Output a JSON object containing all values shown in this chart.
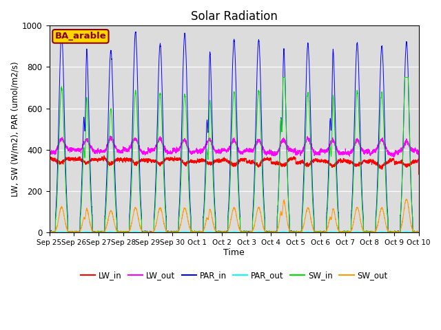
{
  "title": "Solar Radiation",
  "xlabel": "Time",
  "ylabel": "LW, SW (W/m2), PAR (umol/m2/s)",
  "ylim": [
    0,
    1000
  ],
  "site_label": "BA_arable",
  "bg_color": "#dcdcdc",
  "line_colors": {
    "LW_in": "#ff0000",
    "LW_out": "#ff00ff",
    "PAR_in": "#0000ff",
    "PAR_out": "#00ffff",
    "SW_in": "#00dd00",
    "SW_out": "#ff9900"
  },
  "tick_labels": [
    "Sep 25",
    "Sep 26",
    "Sep 27",
    "Sep 28",
    "Sep 29",
    "Sep 30",
    "Oct 1",
    "Oct 2",
    "Oct 3",
    "Oct 4",
    "Oct 5",
    "Oct 6",
    "Oct 7",
    "Oct 8",
    "Oct 9",
    "Oct 10"
  ],
  "n_days": 15,
  "pts_per_day": 288,
  "figsize": [
    6.4,
    4.8
  ],
  "dpi": 100
}
